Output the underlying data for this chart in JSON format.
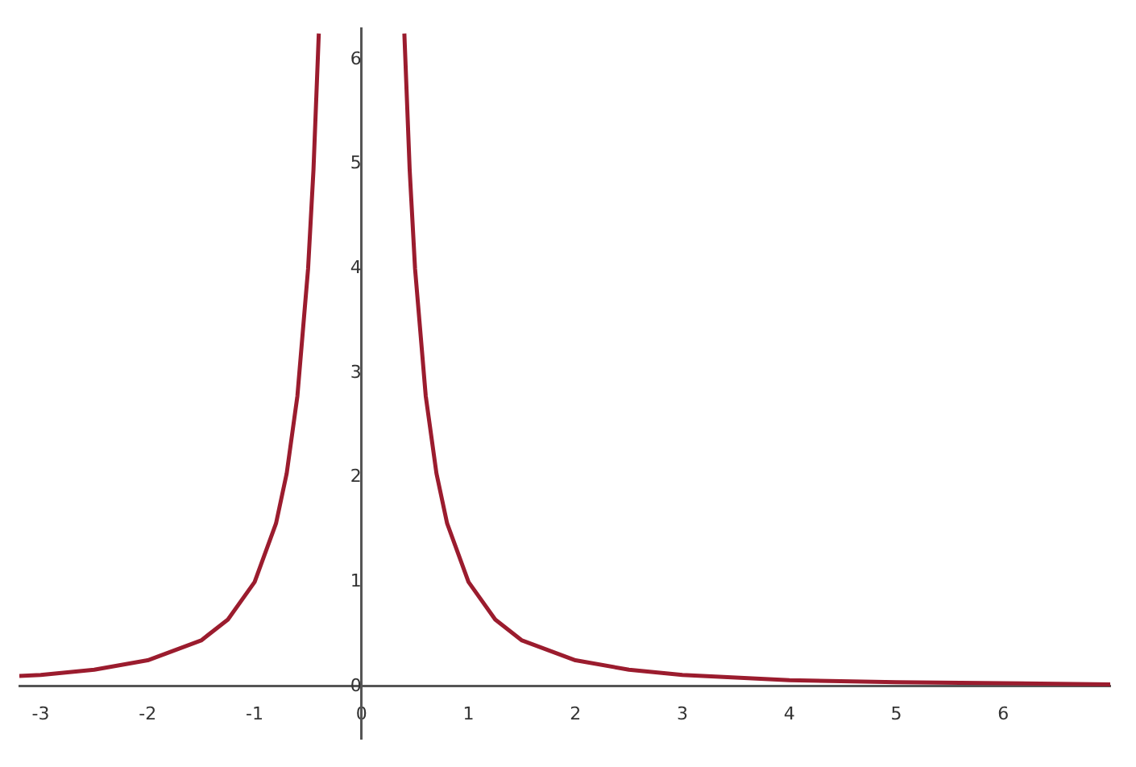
{
  "chart_data": {
    "type": "line",
    "x": [
      -3.2,
      -3,
      -2.5,
      -2,
      -1.5,
      -1.25,
      -1,
      -0.8,
      -0.7,
      -0.6,
      -0.5,
      -0.45,
      -0.4,
      0,
      0.4,
      0.45,
      0.5,
      0.6,
      0.7,
      0.8,
      1,
      1.25,
      1.5,
      2,
      2.5,
      3,
      4,
      5,
      6,
      7
    ],
    "series": [
      {
        "color": "#9b1c2e",
        "values": [
          0.1,
          0.11,
          0.16,
          0.25,
          0.44,
          0.64,
          1,
          1.56,
          2.04,
          2.78,
          4,
          4.94,
          6.25,
          null,
          6.25,
          4.94,
          4,
          2.78,
          2.04,
          1.56,
          1,
          0.64,
          0.44,
          0.25,
          0.16,
          0.11,
          0.06,
          0.04,
          0.03,
          0.02
        ]
      }
    ],
    "xlim": [
      -3.2,
      7
    ],
    "ylim": [
      -0.5,
      6.3
    ],
    "xticks": [
      -3,
      -2,
      -1,
      0,
      1,
      2,
      3,
      4,
      5,
      6
    ],
    "yticks": [
      0,
      1,
      2,
      3,
      4,
      5,
      6
    ],
    "grid": false,
    "legend": false,
    "marker": "none",
    "line_style": "solid"
  }
}
